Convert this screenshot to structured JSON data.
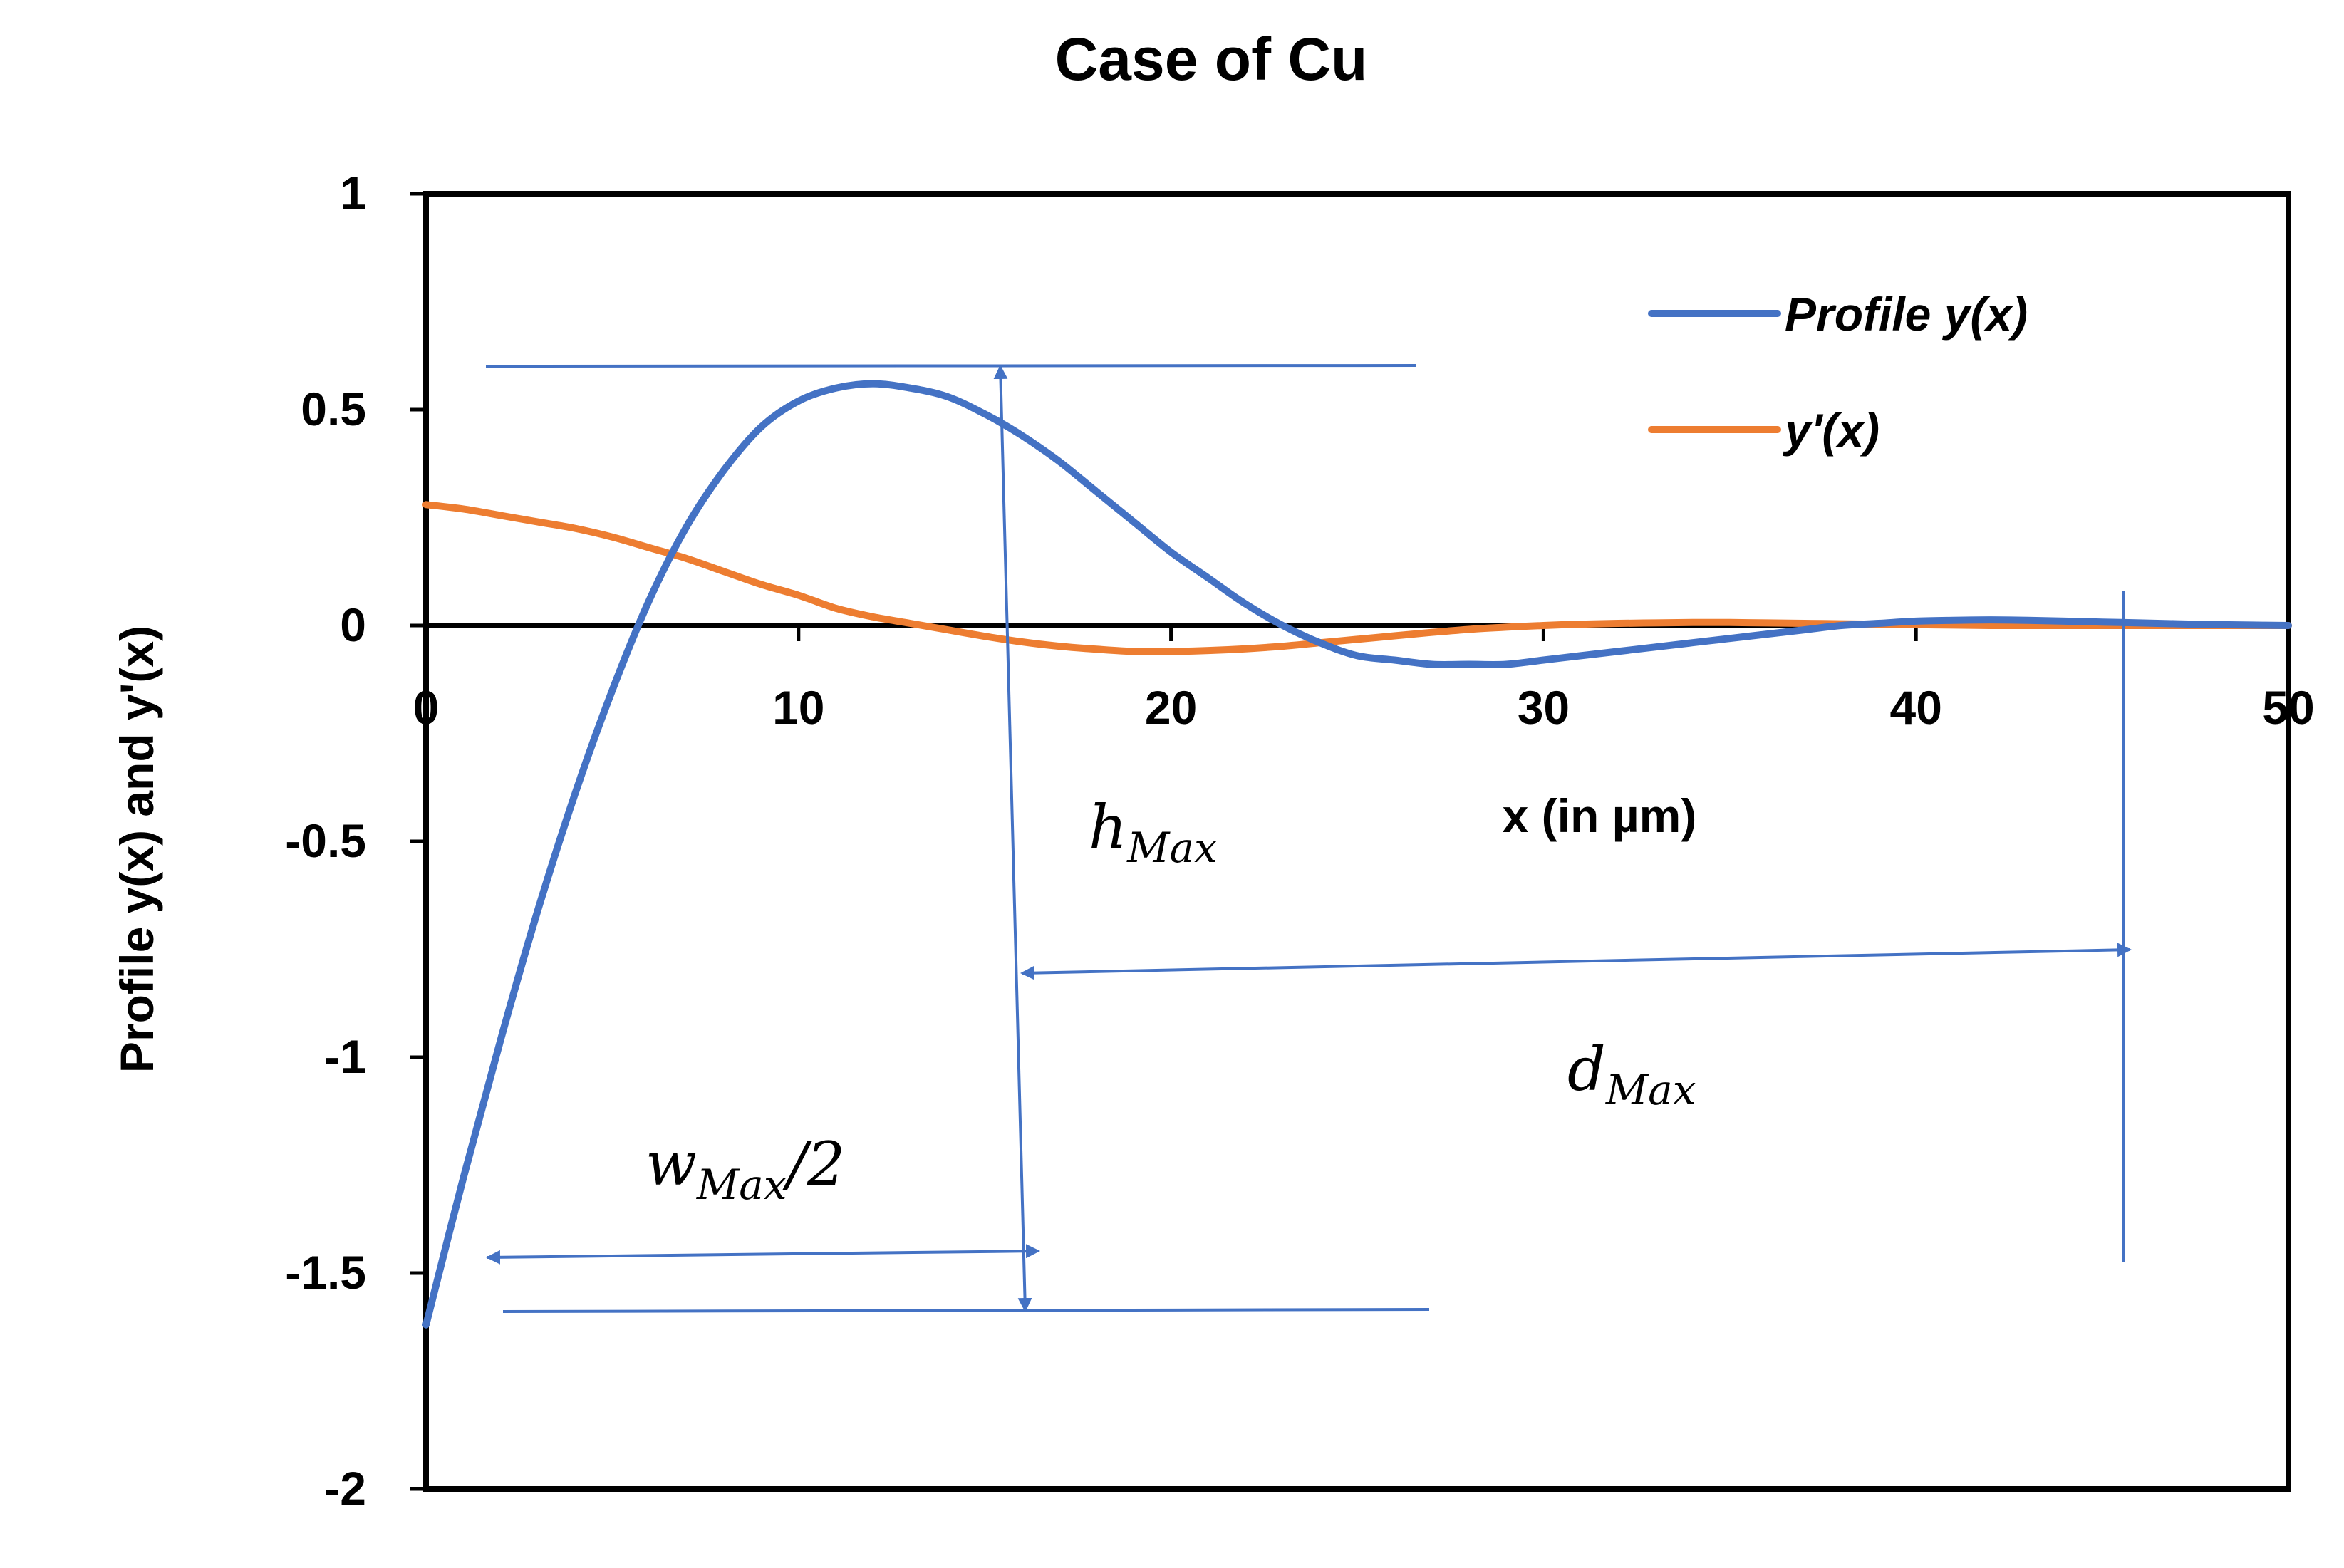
{
  "chart_data": {
    "type": "line",
    "title": "Case of Cu",
    "xlabel": "x (in µm)",
    "ylabel": "Profile y(x) and y'(x)",
    "xlim": [
      0,
      50
    ],
    "ylim": [
      -2,
      1
    ],
    "xticks": [
      "0",
      "10",
      "20",
      "30",
      "40",
      "50"
    ],
    "yticks": [
      "1",
      "0.5",
      "0",
      "-0.5",
      "-1",
      "-1.5",
      "-2"
    ],
    "grid": false,
    "legend_position": "top-right",
    "series": [
      {
        "name": "Profile y(x)",
        "color": "#4472C4",
        "x": [
          0,
          1,
          2,
          3,
          4,
          5,
          6,
          7,
          8,
          9,
          10,
          11,
          12,
          13,
          14,
          15,
          16,
          17,
          18,
          19,
          20,
          21,
          22,
          23,
          24,
          25,
          26,
          27,
          28,
          29,
          30,
          31,
          32,
          33,
          34,
          35,
          36,
          37,
          38,
          39,
          40,
          41,
          42,
          43,
          44,
          45,
          46,
          47,
          48,
          49,
          50
        ],
        "y": [
          -1.62,
          -1.28,
          -0.96,
          -0.66,
          -0.39,
          -0.15,
          0.06,
          0.23,
          0.36,
          0.46,
          0.52,
          0.55,
          0.56,
          0.55,
          0.53,
          0.49,
          0.44,
          0.38,
          0.31,
          0.24,
          0.17,
          0.11,
          0.05,
          0.0,
          -0.04,
          -0.07,
          -0.08,
          -0.09,
          -0.09,
          -0.09,
          -0.08,
          -0.07,
          -0.06,
          -0.05,
          -0.04,
          -0.03,
          -0.02,
          -0.01,
          0.0,
          0.005,
          0.01,
          0.012,
          0.013,
          0.012,
          0.01,
          0.008,
          0.006,
          0.004,
          0.002,
          0.001,
          0.0
        ]
      },
      {
        "name": "y'(x)",
        "color": "#ED7D31",
        "x": [
          0,
          1,
          2,
          3,
          4,
          5,
          6,
          7,
          8,
          9,
          10,
          11,
          12,
          13,
          14,
          15,
          16,
          17,
          18,
          19,
          20,
          21,
          22,
          23,
          24,
          25,
          26,
          27,
          28,
          29,
          30,
          31,
          32,
          33,
          34,
          35,
          36,
          37,
          38,
          39,
          40,
          41,
          42,
          43,
          44,
          45,
          46,
          47,
          48,
          49,
          50
        ],
        "y": [
          0.28,
          0.27,
          0.255,
          0.24,
          0.225,
          0.205,
          0.18,
          0.155,
          0.125,
          0.095,
          0.07,
          0.04,
          0.02,
          0.005,
          -0.01,
          -0.025,
          -0.038,
          -0.048,
          -0.055,
          -0.06,
          -0.06,
          -0.058,
          -0.054,
          -0.048,
          -0.04,
          -0.032,
          -0.024,
          -0.016,
          -0.009,
          -0.004,
          0.0,
          0.003,
          0.005,
          0.006,
          0.007,
          0.007,
          0.006,
          0.005,
          0.004,
          0.003,
          0.002,
          0.001,
          0.0,
          0.0,
          0.0,
          0.0,
          0.0,
          0.0,
          0.0,
          0.0,
          0.0
        ]
      }
    ],
    "annotations": [
      {
        "base": "h",
        "sub": "Max",
        "suffix": ""
      },
      {
        "base": "d",
        "sub": "Max",
        "suffix": ""
      },
      {
        "base": "w",
        "sub": "Max",
        "suffix": "/2"
      }
    ],
    "annotation_color": "#4472C4"
  }
}
